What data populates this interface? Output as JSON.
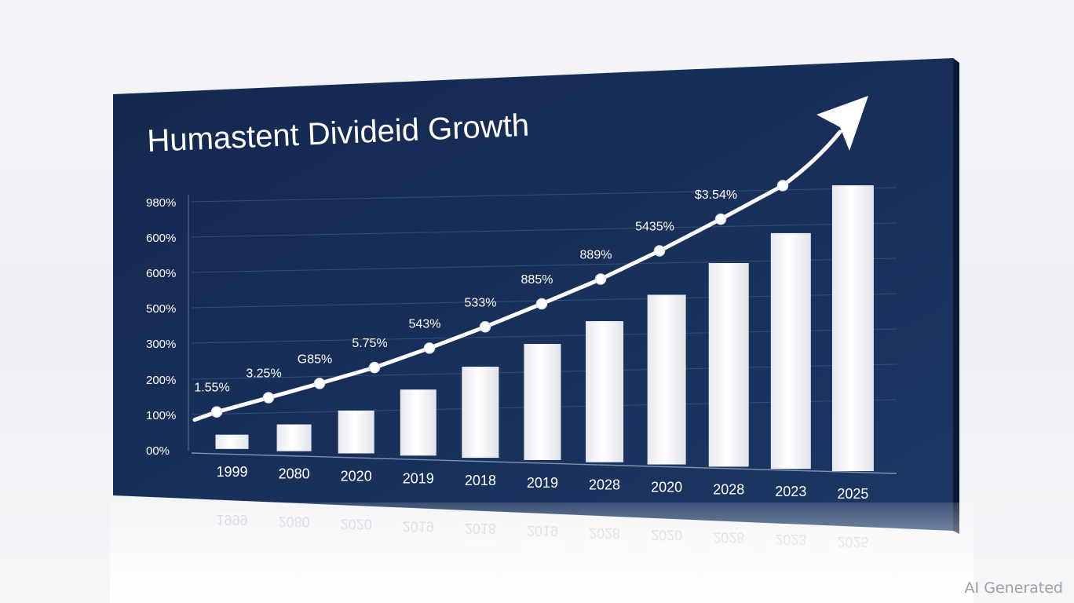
{
  "chart_data": {
    "type": "bar",
    "title": "Humastent Divideid Growth",
    "y_ticks": [
      "00%",
      "100%",
      "200%",
      "300%",
      "500%",
      "600%",
      "600%",
      "980%"
    ],
    "categories": [
      "1999",
      "2080",
      "2020",
      "2019",
      "2018",
      "2019",
      "2028",
      "2020",
      "2028",
      "2023",
      "2025"
    ],
    "values": [
      40,
      75,
      120,
      185,
      255,
      325,
      395,
      475,
      570,
      660,
      800
    ],
    "line_points": [
      {
        "label": "1.55%",
        "value": 45
      },
      {
        "label": "3.25%",
        "value": 90
      },
      {
        "label": "G85%",
        "value": 135
      },
      {
        "label": "5.75%",
        "value": 185
      },
      {
        "label": "543%",
        "value": 245
      },
      {
        "label": "533%",
        "value": 310
      },
      {
        "label": "885%",
        "value": 380
      },
      {
        "label": "889%",
        "value": 455
      },
      {
        "label": "5435%",
        "value": 540
      },
      {
        "label": "$3.54%",
        "value": 635
      },
      {
        "label": "",
        "value": 735
      }
    ],
    "grid": true,
    "legend": "none"
  },
  "colors": {
    "panel": "#173059",
    "bar": "#ffffff",
    "line": "#ffffff",
    "text": "#ffffff"
  },
  "watermark": "AI Generated"
}
